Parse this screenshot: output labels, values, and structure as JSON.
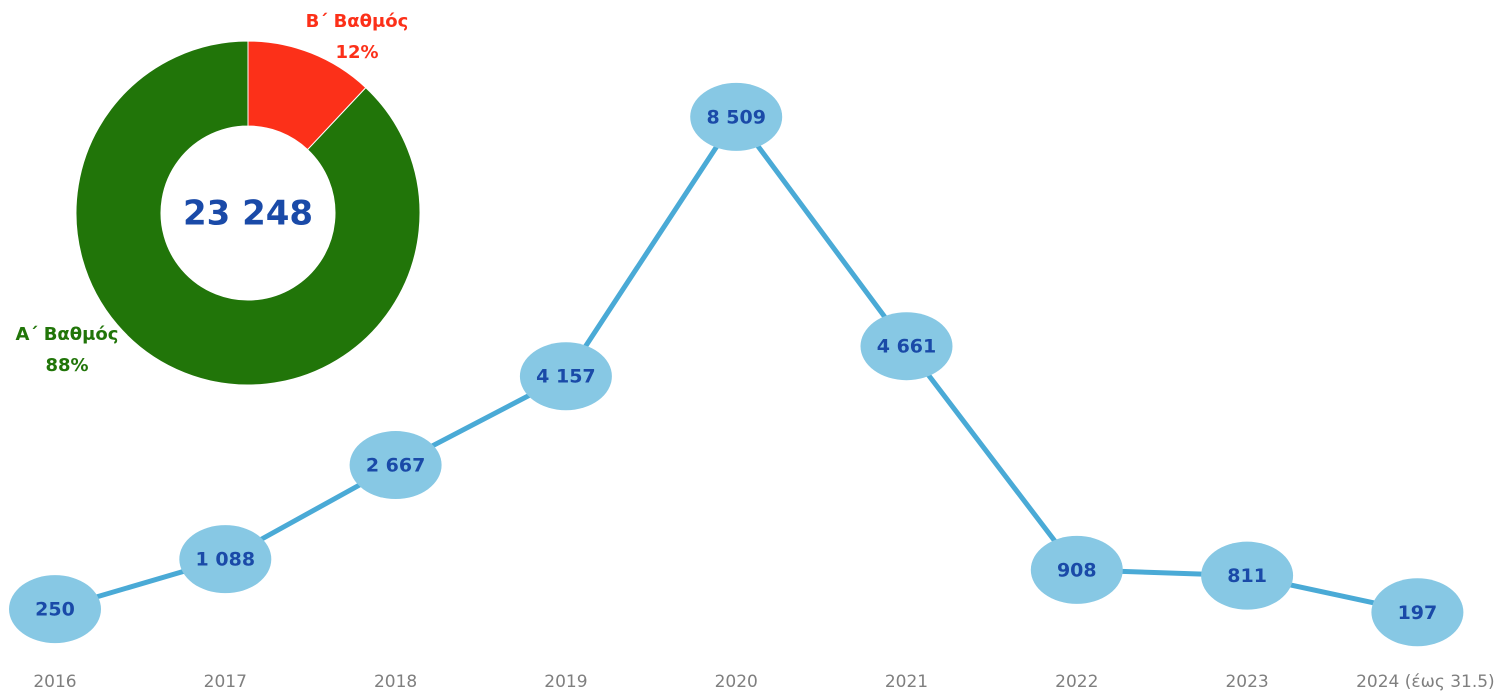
{
  "chart_data": [
    {
      "type": "line",
      "categories": [
        "2016",
        "2017",
        "2018",
        "2019",
        "2020",
        "2021",
        "2022",
        "2023",
        "2024 (έως 31.5)"
      ],
      "values": [
        250,
        1088,
        2667,
        4157,
        8509,
        4661,
        908,
        811,
        197
      ],
      "value_labels": [
        "250",
        "1 088",
        "2 667",
        "4 157",
        "8 509",
        "4 661",
        "908",
        "811",
        "197"
      ],
      "color": "#4aaad6",
      "marker_color": "#87c8e4",
      "ylim": [
        0,
        10000
      ]
    },
    {
      "type": "donut",
      "categories": [
        "Α΄ Βαθμός",
        "Β΄ Βαθμός"
      ],
      "values": [
        88,
        12
      ],
      "value_labels": [
        "88%",
        "12%"
      ],
      "colors": [
        "#217509",
        "#fc3019"
      ],
      "center_label": "23 248"
    }
  ]
}
